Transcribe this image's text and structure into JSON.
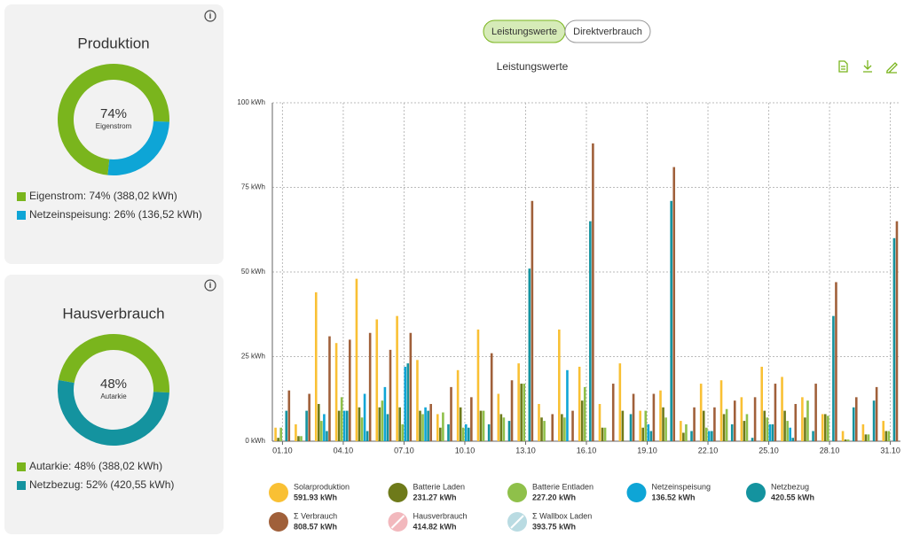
{
  "tabs": [
    "Leistungswerte",
    "Direktverbrauch"
  ],
  "chart_data": [
    {
      "type": "pie",
      "title": "Produktion",
      "center_label": "74%",
      "center_sublabel": "Eigenstrom",
      "categories": [
        "Eigenstrom: 74% (388,02 kWh)",
        "Netzeinspeisung: 26% (136,52 kWh)"
      ],
      "values": [
        74,
        26
      ],
      "colors": [
        "#7ab51d",
        "#0ea5d6"
      ]
    },
    {
      "type": "pie",
      "title": "Hausverbrauch",
      "center_label": "48%",
      "center_sublabel": "Autarkie",
      "categories": [
        "Autarkie: 48% (388,02 kWh)",
        "Netzbezug: 52% (420,55 kWh)"
      ],
      "values": [
        48,
        52
      ],
      "colors": [
        "#7ab51d",
        "#14939f"
      ]
    },
    {
      "type": "bar",
      "title": "Leistungswerte",
      "categories": [
        "01.10",
        null,
        null,
        "04.10",
        null,
        null,
        "07.10",
        null,
        null,
        "10.10",
        null,
        null,
        "13.10",
        null,
        null,
        "16.10",
        null,
        null,
        "19.10",
        null,
        null,
        "22.10",
        null,
        null,
        "25.10",
        null,
        null,
        "28.10",
        null,
        null,
        "31.10"
      ],
      "ylim": [
        0,
        100
      ],
      "yticks": [
        {
          "value": 0,
          "label": "0 kWh"
        },
        {
          "value": 25,
          "label": "25 kWh"
        },
        {
          "value": 50,
          "label": "50 kWh"
        },
        {
          "value": 75,
          "label": "75 kWh"
        },
        {
          "value": 100,
          "label": "100 kWh"
        }
      ],
      "grid": true,
      "series": [
        {
          "name": "Solarproduktion",
          "total": "591.93 kWh",
          "color": "#f9c034",
          "values": [
            4,
            5,
            44,
            29,
            48,
            36,
            37,
            24,
            8,
            21,
            33,
            14,
            23,
            11,
            33,
            22,
            11,
            23,
            9,
            15,
            6,
            17,
            18,
            13,
            22,
            19,
            13,
            8,
            3,
            5,
            6
          ]
        },
        {
          "name": "Batterie Laden",
          "total": "231.27 kWh",
          "color": "#6e7a1a",
          "values": [
            1,
            1.5,
            11,
            9,
            10,
            10,
            10,
            9,
            4,
            10,
            9,
            8,
            17,
            7,
            8,
            12,
            4,
            9,
            4,
            10,
            2.5,
            9,
            8,
            6,
            9,
            9,
            7,
            8,
            0.5,
            2,
            3
          ]
        },
        {
          "name": "Batterie Entladen",
          "total": "227.20 kWh",
          "color": "#8fc04a",
          "values": [
            4,
            1.5,
            6,
            13,
            7,
            12,
            5,
            8,
            8.5,
            4,
            9,
            7,
            17,
            6,
            7,
            16,
            4,
            0,
            9,
            7,
            5,
            4,
            9.5,
            8,
            7,
            6,
            12,
            7.5,
            0.5,
            2,
            3
          ]
        },
        {
          "name": "Netzeinspeisung",
          "total": "136.52 kWh",
          "color": "#0ea5d6",
          "values": [
            0,
            0,
            8,
            9,
            14,
            16,
            22,
            10,
            0,
            5,
            0,
            0,
            0,
            0,
            21,
            0,
            0,
            0,
            5,
            0,
            0,
            3,
            0,
            0,
            5,
            4,
            0,
            0,
            0,
            0,
            0
          ]
        },
        {
          "name": "Netzbezug",
          "total": "420.55 kWh",
          "color": "#14939f",
          "values": [
            9,
            9,
            3,
            9,
            3,
            8,
            23,
            9,
            5,
            4,
            5,
            6,
            51,
            0,
            0,
            65,
            0,
            8,
            3,
            71,
            3,
            3,
            5,
            1,
            5,
            1,
            3,
            37,
            10,
            12,
            60
          ]
        },
        {
          "name": "Σ Verbrauch",
          "total": "808.57 kWh",
          "color": "#a0603a",
          "values": [
            15,
            14,
            31,
            30,
            32,
            27,
            32,
            11,
            16,
            13,
            26,
            18,
            71,
            8,
            9,
            88,
            17,
            14,
            14,
            81,
            10,
            10,
            12,
            13,
            17,
            11,
            17,
            47,
            13,
            16,
            65
          ]
        }
      ],
      "inactive_legend": [
        {
          "name": "Hausverbrauch",
          "total": "414.82 kWh",
          "color": "#f2b8bd"
        },
        {
          "name": "Σ Wallbox Laden",
          "total": "393.75 kWh",
          "color": "#b9dbe2"
        }
      ]
    }
  ]
}
